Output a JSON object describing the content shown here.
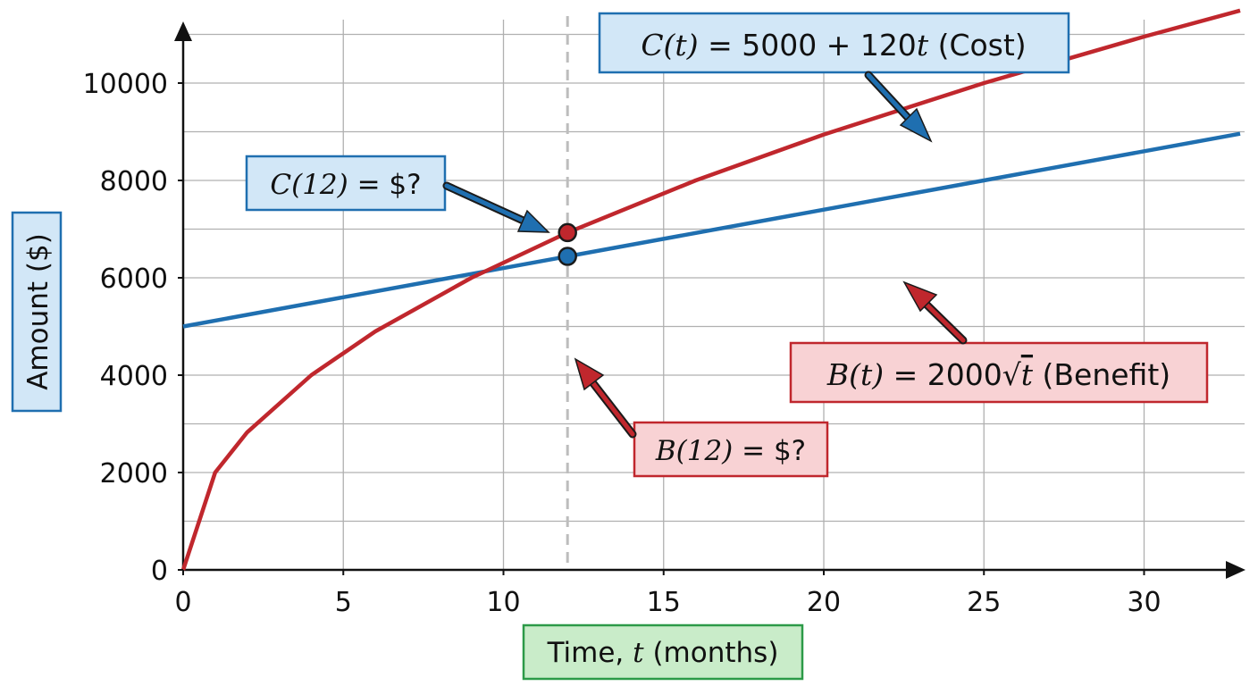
{
  "chart_data": {
    "type": "line",
    "xlabel": {
      "prefix": "Time, ",
      "var": "t",
      "suffix": " (months)"
    },
    "ylabel": "Amount ($)",
    "xlim": [
      0,
      33
    ],
    "ylim": [
      0,
      11000
    ],
    "xticks": [
      0,
      5,
      10,
      15,
      20,
      25,
      30
    ],
    "yticks": [
      0,
      2000,
      4000,
      6000,
      8000,
      10000
    ],
    "grid": true,
    "series": [
      {
        "name": "Cost",
        "formula": {
          "fn": "C(t)",
          "rhs": " = 5000 + 120",
          "var": "t",
          "tail": " (Cost)"
        },
        "color": "#1f6fb0",
        "intercept": 5000,
        "slope": 120,
        "x": [
          0,
          33
        ],
        "y": [
          5000,
          8960
        ]
      },
      {
        "name": "Benefit",
        "formula": {
          "fn": "B(t)",
          "rhs": " = 2000",
          "sqrt_var": "t",
          "tail": " (Benefit)"
        },
        "color": "#c0272d",
        "coefficient": 2000,
        "x": [
          0,
          1,
          2,
          4,
          6,
          9,
          12,
          16,
          20,
          25,
          30,
          33
        ],
        "y": [
          0,
          2000,
          2828,
          4000,
          4899,
          6000,
          6928,
          8000,
          8944,
          10000,
          10954,
          11489
        ]
      }
    ],
    "marker_line_x": 12,
    "points": [
      {
        "series": "Cost",
        "x": 12,
        "y": 6440,
        "label_fn": "C(12)",
        "label_rest": " = $?"
      },
      {
        "series": "Benefit",
        "x": 12,
        "y": 6928,
        "label_fn": "B(12)",
        "label_rest": " = $?"
      }
    ]
  },
  "colors": {
    "cost": "#1f6fb0",
    "benefit": "#c0272d",
    "cost_box_fill": "#d2e7f7",
    "benefit_box_fill": "#f8d2d4",
    "xlabel_box_fill": "#c9ecc9",
    "xlabel_box_stroke": "#2c9a48",
    "grid": "#b0b0b0"
  }
}
